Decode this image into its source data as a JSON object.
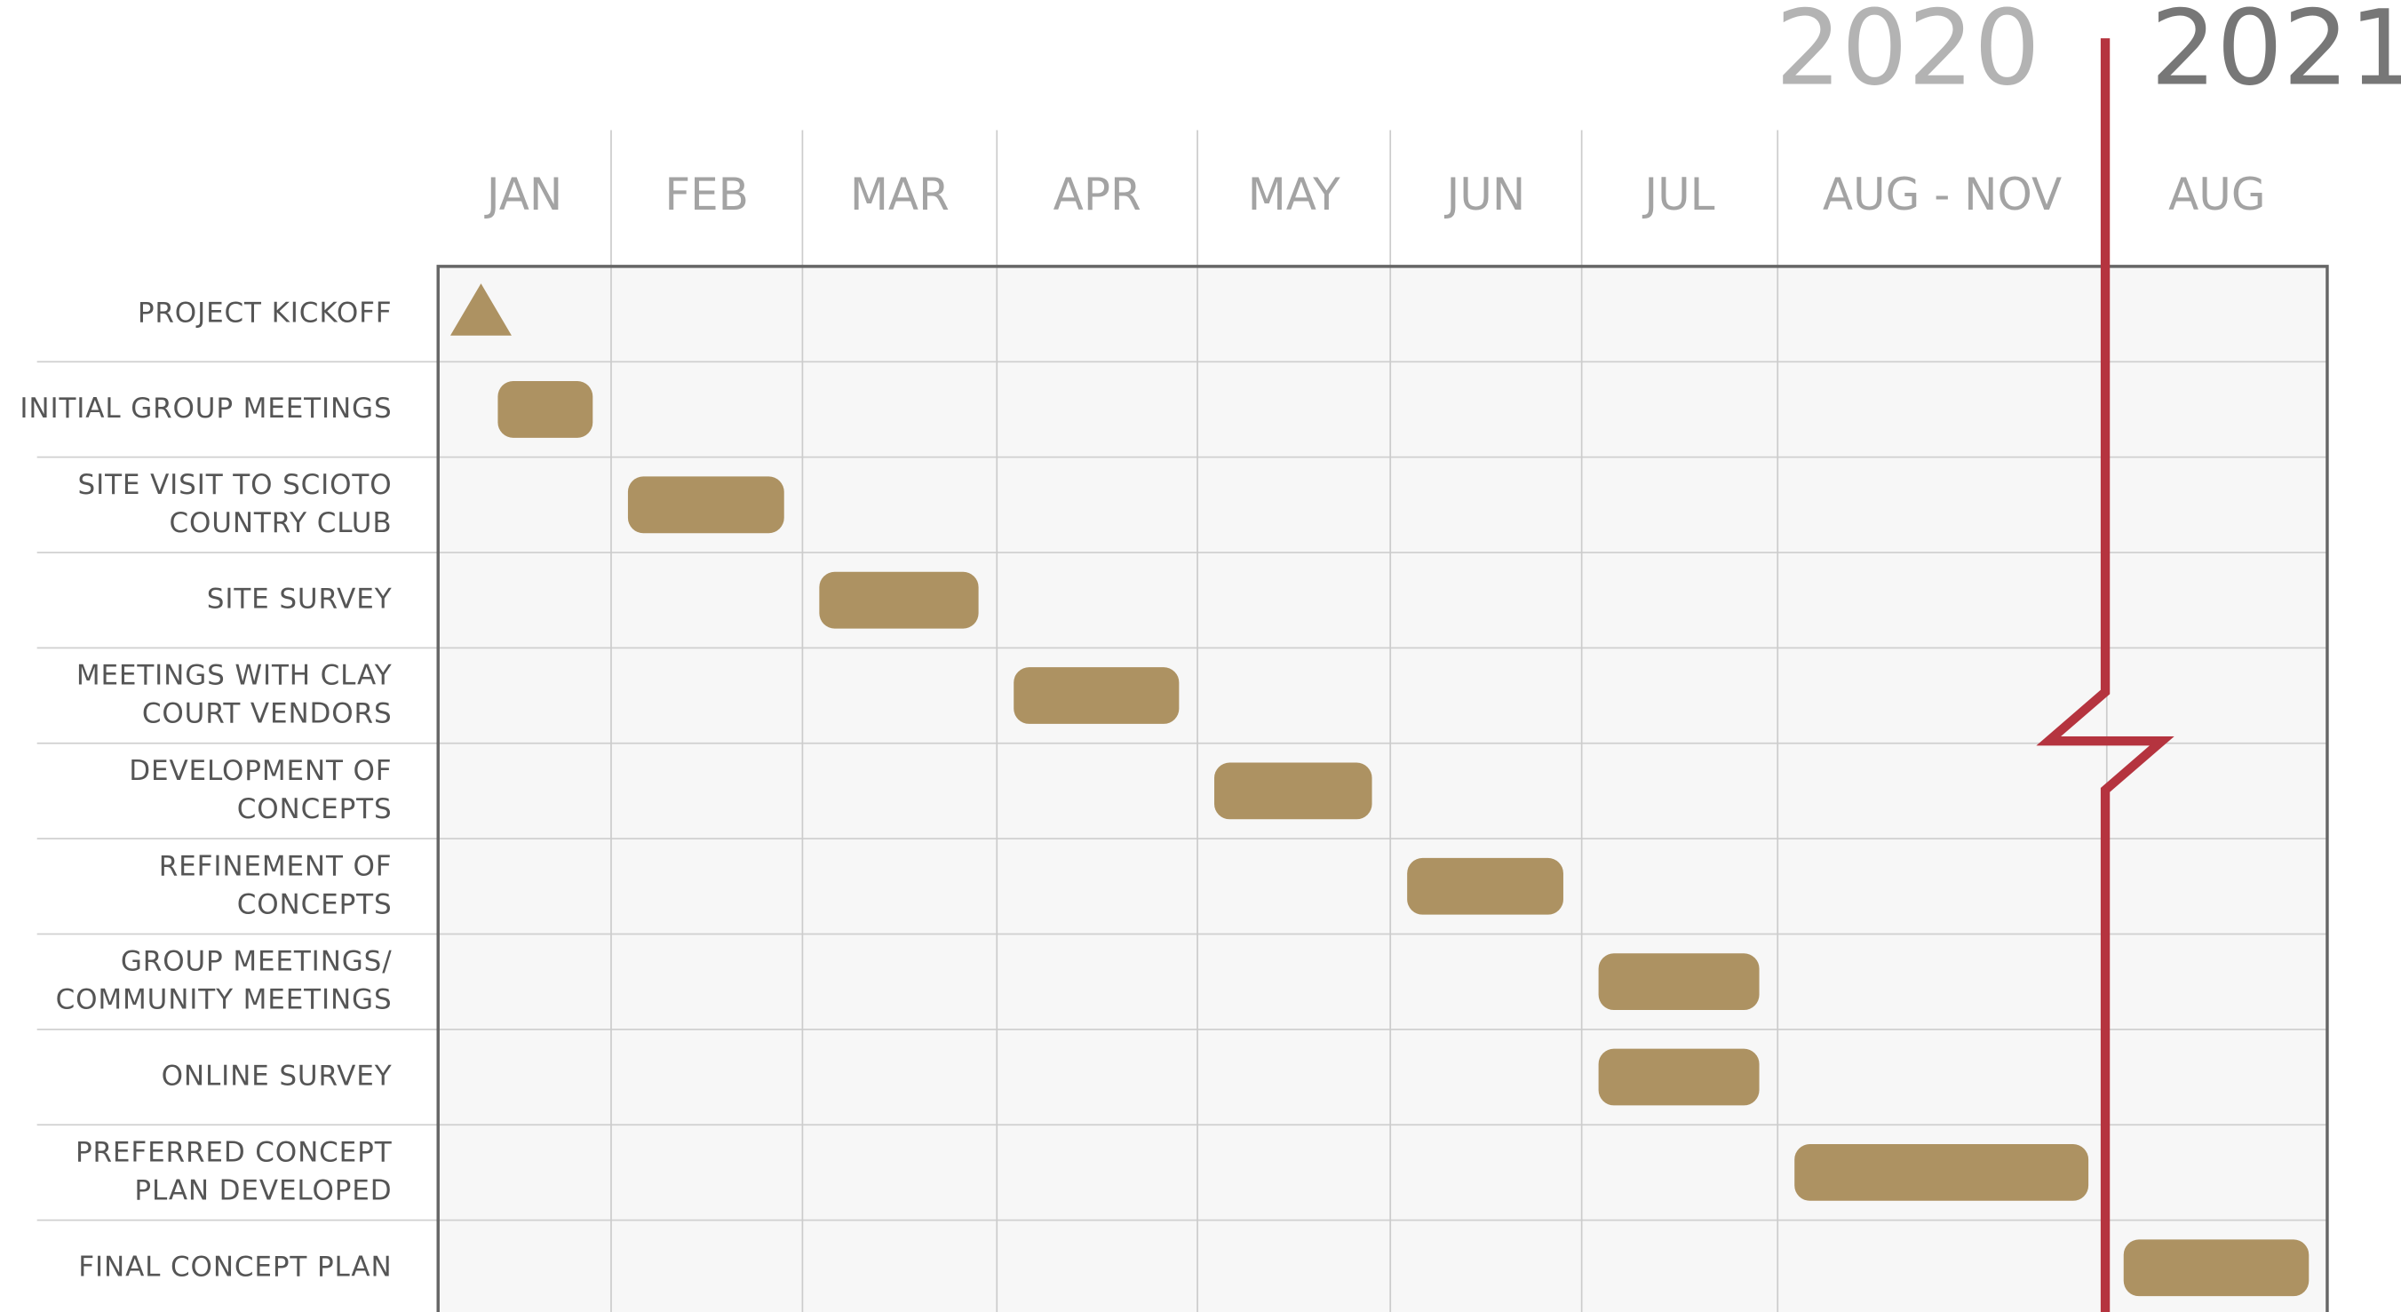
{
  "years": [
    {
      "label": "2020",
      "months": [
        "JAN",
        "FEB",
        "MAR",
        "APR",
        "MAY",
        "JUN",
        "JUL",
        "AUG - NOV"
      ]
    },
    {
      "label": "2021",
      "months": [
        "AUG"
      ]
    }
  ],
  "tasks": [
    {
      "label": [
        "PROJECT KICKOFF"
      ],
      "year": "2020",
      "month": "JAN",
      "milestone": true
    },
    {
      "label": [
        "INITIAL GROUP MEETINGS"
      ],
      "year": "2020",
      "month": "JAN"
    },
    {
      "label": [
        "SITE VISIT TO SCIOTO",
        "COUNTRY CLUB"
      ],
      "year": "2020",
      "month": "FEB"
    },
    {
      "label": [
        "SITE SURVEY"
      ],
      "year": "2020",
      "month": "MAR"
    },
    {
      "label": [
        "MEETINGS WITH CLAY",
        "COURT VENDORS"
      ],
      "year": "2020",
      "month": "APR"
    },
    {
      "label": [
        "DEVELOPMENT OF",
        "CONCEPTS"
      ],
      "year": "2020",
      "month": "MAY"
    },
    {
      "label": [
        "REFINEMENT OF",
        "CONCEPTS"
      ],
      "year": "2020",
      "month": "JUN"
    },
    {
      "label": [
        "GROUP MEETINGS/",
        "COMMUNITY MEETINGS"
      ],
      "year": "2020",
      "month": "JUL"
    },
    {
      "label": [
        "ONLINE SURVEY"
      ],
      "year": "2020",
      "month": "JUL"
    },
    {
      "label": [
        "PREFERRED CONCEPT",
        "PLAN DEVELOPED"
      ],
      "year": "2020",
      "month": "AUG - NOV"
    },
    {
      "label": [
        "FINAL CONCEPT PLAN"
      ],
      "year": "2021",
      "month": "AUG"
    }
  ]
}
